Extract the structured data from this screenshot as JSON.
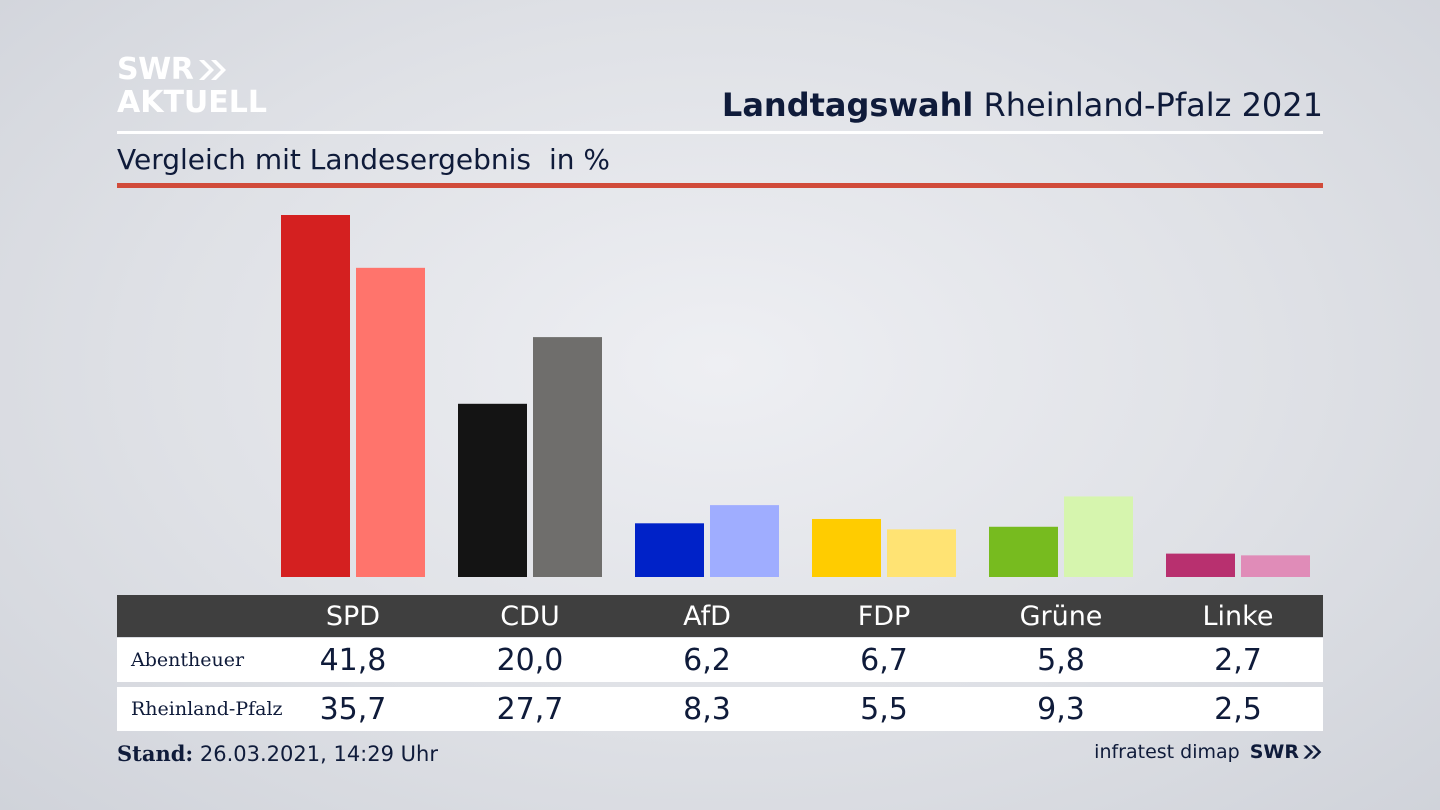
{
  "logo": {
    "line1": "SWR",
    "line2": "AKTUELL",
    "color": "#ffffff"
  },
  "header": {
    "title_bold": "Landtagswahl",
    "title_regular": "Rheinland-Pfalz 2021",
    "subtitle": "Vergleich mit Landesergebnis",
    "unit": "in %",
    "accent_color": "#d14b3a"
  },
  "chart_data": {
    "type": "bar",
    "categories": [
      "SPD",
      "CDU",
      "AfD",
      "FDP",
      "Grüne",
      "Linke"
    ],
    "series": [
      {
        "name": "Abentheuer",
        "values": [
          41.8,
          20.0,
          6.2,
          6.7,
          5.8,
          2.7
        ],
        "labels": [
          "41,8",
          "20,0",
          "6,2",
          "6,7",
          "5,8",
          "2,7"
        ],
        "colors": [
          "#d42020",
          "#141414",
          "#0022c8",
          "#ffcc00",
          "#77bb1f",
          "#b8306f"
        ]
      },
      {
        "name": "Rheinland-Pfalz",
        "values": [
          35.7,
          27.7,
          8.3,
          5.5,
          9.3,
          2.5
        ],
        "labels": [
          "35,7",
          "27,7",
          "8,3",
          "5,5",
          "9,3",
          "2,5"
        ],
        "colors": [
          "#ff746c",
          "#6f6e6c",
          "#9fadff",
          "#ffe373",
          "#d6f5ae",
          "#e08cb8"
        ]
      }
    ],
    "ylim": [
      0,
      41.8
    ],
    "grid": false,
    "legend": "table-below"
  },
  "footer": {
    "stand_label": "Stand:",
    "stand_value": "26.03.2021, 14:29 Uhr",
    "source": "infratest dimap",
    "source_logo": "SWR"
  }
}
